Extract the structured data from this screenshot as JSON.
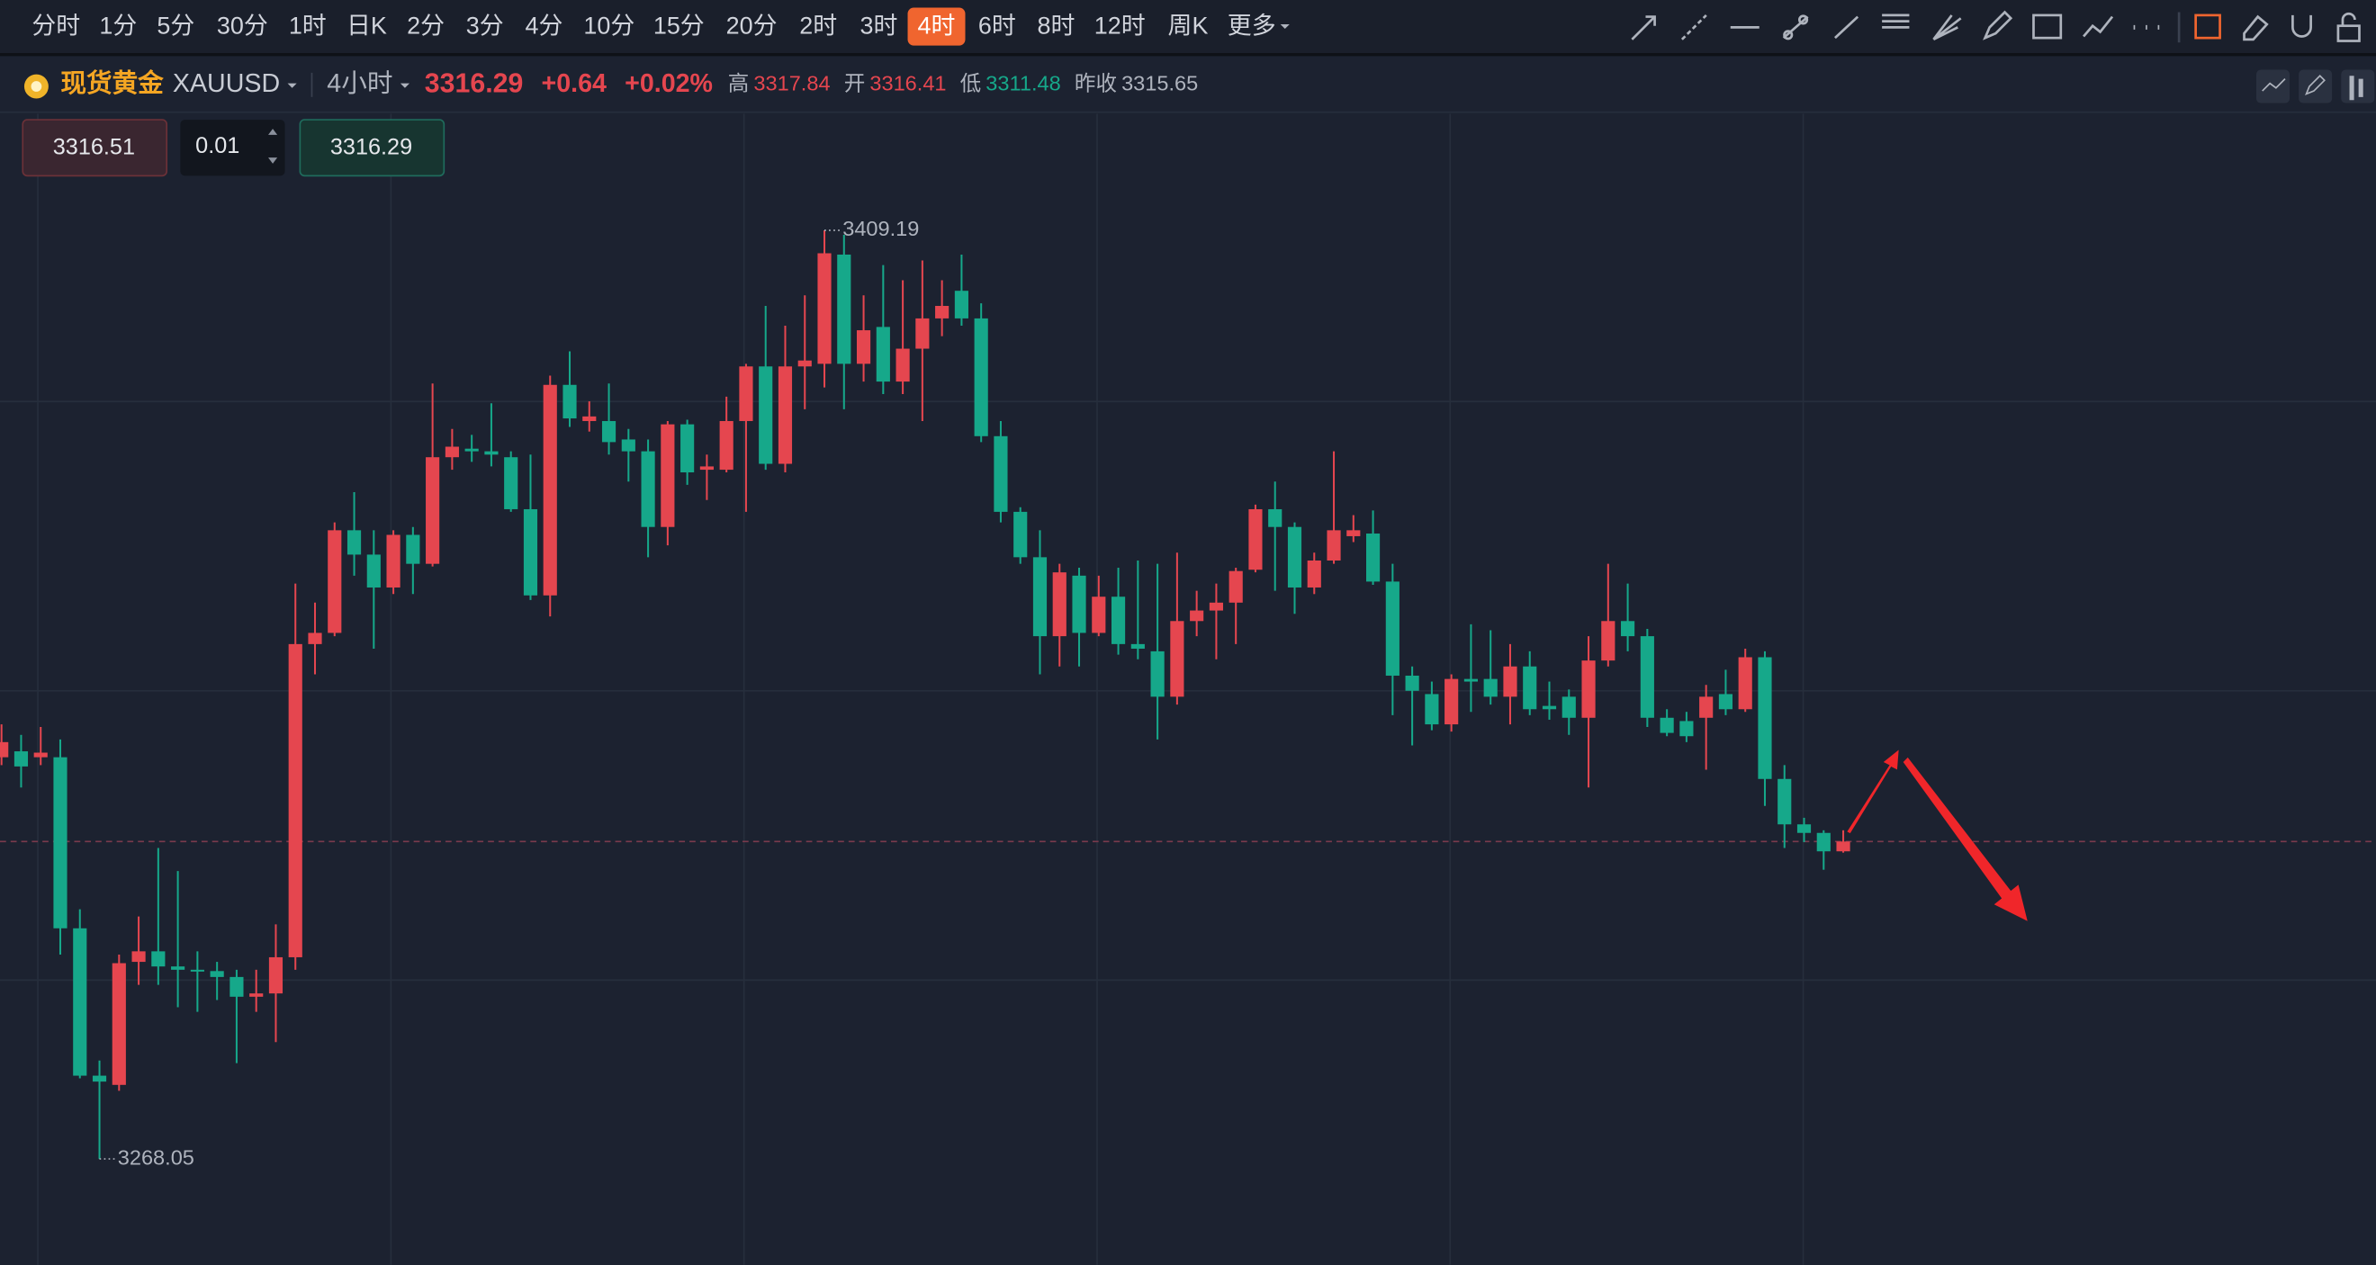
{
  "toolbar": {
    "timeframes": [
      "分时",
      "1分",
      "5分",
      "30分",
      "1时",
      "日K",
      "2分",
      "3分",
      "4分",
      "10分",
      "15分",
      "20分",
      "2时",
      "3时",
      "4时",
      "6时",
      "8时",
      "12时",
      "周K",
      "更多"
    ],
    "active": 14
  },
  "symbol": {
    "name": "现货黄金",
    "code": "XAUUSD",
    "interval": "4小时",
    "price": "3316.29",
    "change": "+0.64",
    "change_pct": "+0.02%",
    "stats": [
      {
        "label": "高",
        "value": "3317.84",
        "color": "#e5464f"
      },
      {
        "label": "开",
        "value": "3316.41",
        "color": "#e5464f"
      },
      {
        "label": "低",
        "value": "3311.48",
        "color": "#16a88a"
      },
      {
        "label": "昨收",
        "value": "3315.65",
        "color": "#aeb3bd"
      }
    ]
  },
  "order": {
    "sell": "3316.51",
    "quantity": "0.01",
    "buy": "3316.29"
  },
  "chart_data": {
    "type": "candlestick",
    "up_color": "#e5464f",
    "down_color": "#16a88a",
    "open": [
      3329.1,
      3330.0,
      3329.1,
      3329.1,
      3303.1,
      3280.7,
      3279.3,
      3298.0,
      3299.6,
      3297.3,
      3296.8,
      3296.6,
      3295.7,
      3292.7,
      3293.2,
      3298.7,
      3346.3,
      3348.0,
      3363.6,
      3359.9,
      3354.9,
      3362.9,
      3358.5,
      3374.7,
      3376.0,
      3375.6,
      3374.7,
      3366.8,
      3353.7,
      3385.7,
      3380.2,
      3380.2,
      3377.4,
      3375.6,
      3364.1,
      3379.7,
      3372.8,
      3372.8,
      3380.2,
      3388.5,
      3373.7,
      3388.5,
      3388.9,
      3405.5,
      3388.9,
      3394.5,
      3386.2,
      3391.2,
      3395.8,
      3400.0,
      3395.8,
      3377.9,
      3366.4,
      3359.5,
      3347.5,
      3356.7,
      3348.0,
      3353.5,
      3346.3,
      3345.2,
      3338.3,
      3349.8,
      3351.4,
      3352.6,
      3357.6,
      3366.8,
      3364.1,
      3354.9,
      3359.0,
      3362.7,
      3363.1,
      3355.8,
      3341.5,
      3338.7,
      3334.1,
      3341.0,
      3341.0,
      3338.3,
      3342.9,
      3336.9,
      3338.3,
      3335.1,
      3343.8,
      3349.8,
      3347.5,
      3335.1,
      3334.6,
      3335.1,
      3338.7,
      3336.4,
      3344.3,
      3325.8,
      3318.9,
      3317.6,
      3314.8
    ],
    "high": [
      3334.1,
      3332.5,
      3333.7,
      3331.8,
      3306.0,
      3283.0,
      3299.1,
      3304.9,
      3315.3,
      3311.8,
      3299.6,
      3298.0,
      3296.8,
      3296.8,
      3303.7,
      3355.5,
      3352.6,
      3364.8,
      3369.4,
      3363.6,
      3363.6,
      3364.1,
      3385.9,
      3379.0,
      3378.1,
      3382.9,
      3375.6,
      3375.1,
      3387.1,
      3390.8,
      3383.2,
      3385.9,
      3379.0,
      3377.4,
      3380.2,
      3380.4,
      3375.1,
      3383.9,
      3388.9,
      3397.7,
      3394.7,
      3399.3,
      3409.19,
      3408.5,
      3399.3,
      3403.9,
      3401.6,
      3404.6,
      3401.6,
      3405.5,
      3398.1,
      3380.2,
      3367.1,
      3363.6,
      3358.5,
      3357.9,
      3356.7,
      3357.9,
      3359.0,
      3358.5,
      3360.2,
      3354.4,
      3355.5,
      3357.9,
      3367.5,
      3371.0,
      3364.8,
      3360.2,
      3375.6,
      3365.9,
      3366.6,
      3358.5,
      3342.9,
      3340.6,
      3341.7,
      3349.3,
      3348.4,
      3346.3,
      3345.2,
      3340.6,
      3339.4,
      3347.5,
      3358.5,
      3355.5,
      3348.6,
      3336.4,
      3336.0,
      3340.1,
      3342.4,
      3345.6,
      3345.2,
      3327.9,
      3319.9,
      3318.0,
      3318.0
    ],
    "low": [
      3327.9,
      3324.5,
      3327.9,
      3299.1,
      3280.3,
      3268.05,
      3278.4,
      3294.5,
      3294.5,
      3291.1,
      3290.4,
      3292.2,
      3282.6,
      3290.4,
      3285.8,
      3296.8,
      3341.7,
      3347.5,
      3356.7,
      3345.6,
      3353.9,
      3353.9,
      3358.1,
      3372.8,
      3374.0,
      3373.3,
      3366.4,
      3353.0,
      3350.5,
      3379.3,
      3378.6,
      3375.1,
      3371.0,
      3359.5,
      3361.3,
      3370.5,
      3368.2,
      3372.4,
      3366.4,
      3372.8,
      3372.4,
      3382.0,
      3385.3,
      3382.0,
      3386.2,
      3384.3,
      3384.3,
      3380.2,
      3393.1,
      3394.7,
      3377.0,
      3364.8,
      3358.5,
      3341.7,
      3342.9,
      3342.9,
      3347.5,
      3344.7,
      3344.0,
      3331.8,
      3337.1,
      3347.5,
      3344.0,
      3346.3,
      3357.2,
      3354.4,
      3350.9,
      3353.9,
      3358.5,
      3361.8,
      3355.3,
      3335.5,
      3330.9,
      3333.2,
      3333.0,
      3336.0,
      3337.1,
      3334.1,
      3335.5,
      3334.8,
      3332.5,
      3324.5,
      3342.9,
      3345.2,
      3333.7,
      3332.3,
      3331.4,
      3327.2,
      3335.5,
      3336.0,
      3321.7,
      3315.3,
      3316.2,
      3312.0,
      3314.6
    ],
    "close": [
      3331.4,
      3327.7,
      3329.8,
      3303.1,
      3280.7,
      3279.8,
      3297.8,
      3299.6,
      3297.3,
      3296.8,
      3296.6,
      3295.7,
      3292.7,
      3293.2,
      3298.7,
      3346.3,
      3348.0,
      3363.6,
      3359.9,
      3354.9,
      3362.9,
      3358.5,
      3374.7,
      3376.3,
      3375.6,
      3375.1,
      3366.8,
      3353.7,
      3385.7,
      3380.6,
      3380.9,
      3377.0,
      3375.6,
      3364.1,
      3379.7,
      3372.4,
      3373.3,
      3380.2,
      3388.5,
      3373.7,
      3388.5,
      3389.4,
      3405.7,
      3388.9,
      3394.0,
      3386.2,
      3391.2,
      3395.8,
      3397.7,
      3395.8,
      3377.9,
      3366.4,
      3359.5,
      3347.5,
      3357.2,
      3348.0,
      3353.5,
      3346.3,
      3345.6,
      3338.3,
      3349.8,
      3351.4,
      3352.6,
      3357.4,
      3366.8,
      3364.1,
      3354.9,
      3359.0,
      3363.6,
      3363.6,
      3355.8,
      3341.5,
      3339.2,
      3334.1,
      3341.0,
      3340.6,
      3338.3,
      3342.9,
      3336.4,
      3336.4,
      3335.1,
      3343.8,
      3349.8,
      3347.5,
      3335.1,
      3332.8,
      3332.3,
      3338.3,
      3336.4,
      3344.3,
      3325.8,
      3318.9,
      3317.6,
      3314.8,
      3316.29
    ]
  }
}
